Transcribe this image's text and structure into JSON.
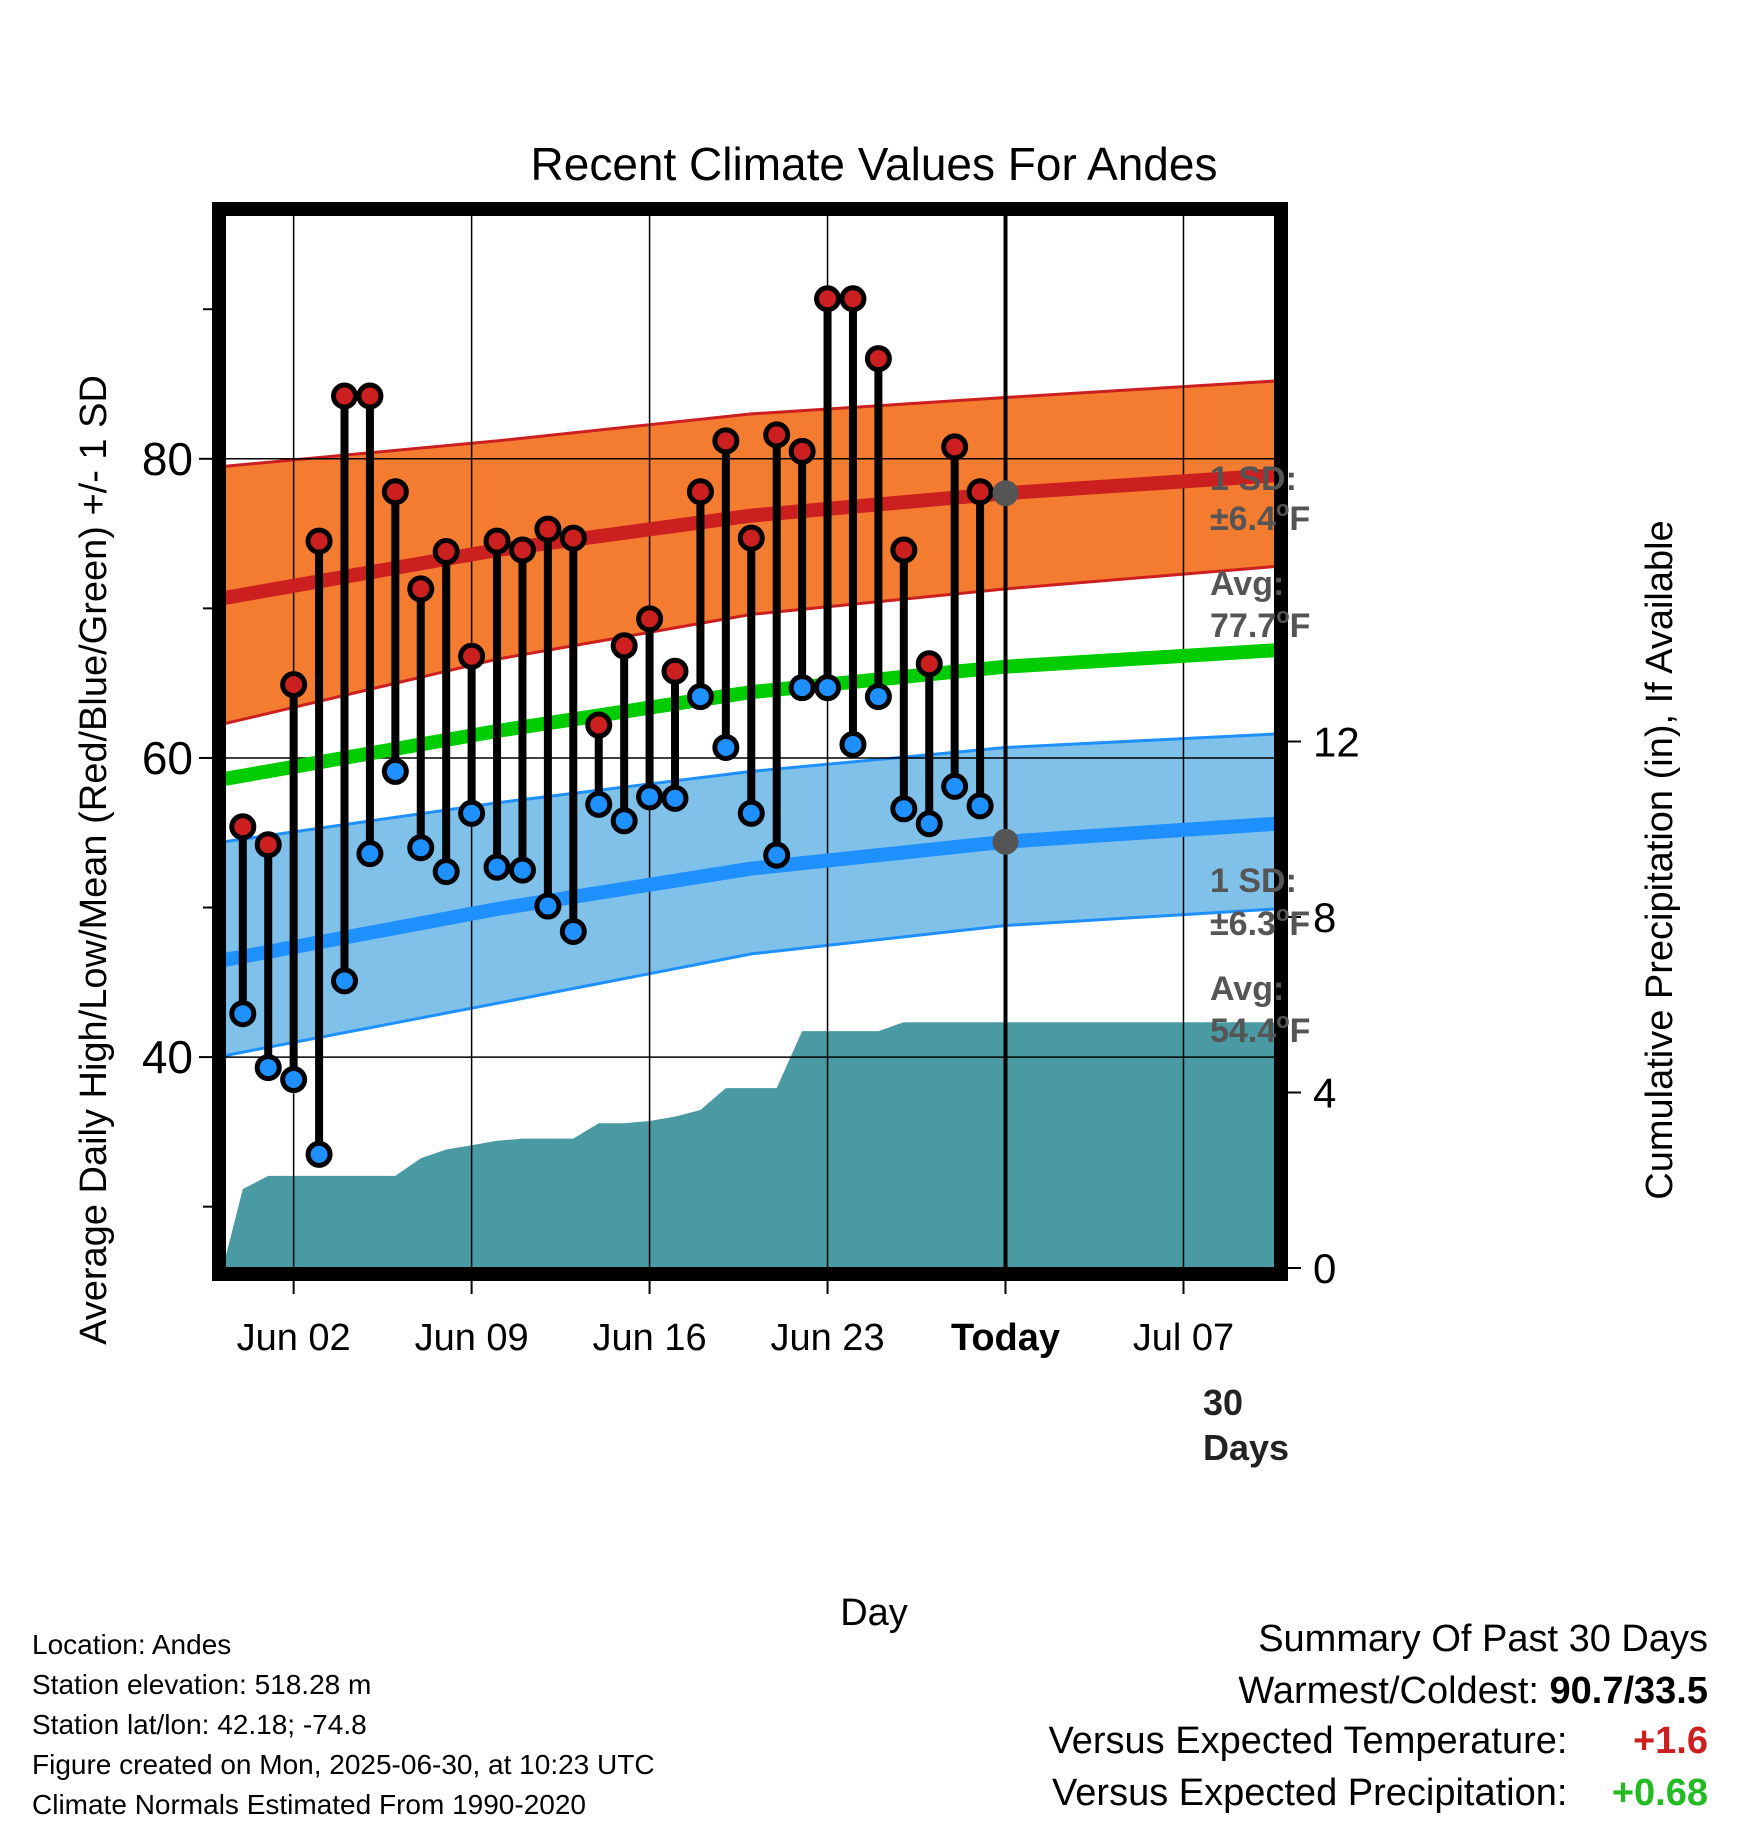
{
  "chart_data": {
    "type": "line",
    "title": "Recent Climate Values For Andes",
    "xlabel": "Day",
    "ylabel": "Average Daily High/Low/Mean (Red/Blue/Green) +/- 1 SD",
    "y2label": "Cumulative Precipitation (in), If Available",
    "xlim": [
      -2.7,
      38.6
    ],
    "ylim": [
      25.9,
      96.3
    ],
    "y2lim": [
      0,
      24
    ],
    "x_ticks": [
      {
        "x": 0,
        "label": "Jun 02"
      },
      {
        "x": 7,
        "label": "Jun 09"
      },
      {
        "x": 14,
        "label": "Jun 16"
      },
      {
        "x": 21,
        "label": "Jun 23"
      },
      {
        "x": 28,
        "label": "Today"
      },
      {
        "x": 35,
        "label": "Jul 07"
      }
    ],
    "y_ticks": [
      40,
      60,
      80
    ],
    "y_minor_ticks": [
      30,
      50,
      70,
      90
    ],
    "y2_ticks": [
      0,
      4,
      8,
      12
    ],
    "grid": true,
    "today_x": 28,
    "today_label": "30 Days",
    "days": [
      -2,
      -1,
      0,
      1,
      2,
      3,
      4,
      5,
      6,
      7,
      8,
      9,
      10,
      11,
      12,
      13,
      14,
      15,
      16,
      17,
      18,
      19,
      20,
      21,
      22,
      23,
      24,
      25,
      26,
      27
    ],
    "highs": [
      55.4,
      54.2,
      64.9,
      74.5,
      84.2,
      84.2,
      77.8,
      71.3,
      73.8,
      66.8,
      74.5,
      73.9,
      75.3,
      74.7,
      62.2,
      67.5,
      69.3,
      65.8,
      77.8,
      81.2,
      74.7,
      81.6,
      80.5,
      90.7,
      90.7,
      86.7,
      73.9,
      66.3,
      80.8,
      77.8
    ],
    "lows": [
      42.9,
      39.3,
      38.5,
      33.5,
      45.1,
      53.6,
      59.1,
      54.0,
      52.4,
      56.3,
      52.7,
      52.5,
      50.1,
      48.4,
      56.9,
      55.8,
      57.4,
      57.3,
      64.1,
      60.7,
      56.3,
      53.5,
      64.7,
      64.7,
      60.9,
      64.1,
      56.6,
      55.6,
      58.1,
      56.8
    ],
    "series": [
      {
        "name": "Avg High",
        "color": "#cc1f1f",
        "x": [
          -2.7,
          8,
          18,
          28,
          38.6
        ],
        "values": [
          70.7,
          73.9,
          76.2,
          77.7,
          78.9
        ]
      },
      {
        "name": "Avg Mean",
        "color": "#00cc00",
        "x": [
          -2.7,
          8,
          18,
          28,
          38.6
        ],
        "values": [
          58.6,
          61.8,
          64.4,
          66.1,
          67.2
        ]
      },
      {
        "name": "Avg Low",
        "color": "#1e90ff",
        "x": [
          -2.7,
          8,
          18,
          28,
          38.6
        ],
        "values": [
          46.5,
          49.9,
          52.6,
          54.4,
          55.6
        ]
      }
    ],
    "bands": [
      {
        "name": "High +/- 1 SD",
        "color": "#f47c30",
        "edge": "#cc1f1f",
        "x": [
          -2.7,
          8,
          18,
          28,
          38.6
        ],
        "upper": [
          79.5,
          81.2,
          83.0,
          84.1,
          85.2
        ],
        "lower": [
          62.3,
          66.6,
          69.6,
          71.3,
          72.8
        ]
      },
      {
        "name": "Low +/- 1 SD",
        "color": "#80c1ea",
        "edge": "#1e90ff",
        "x": [
          -2.7,
          8,
          18,
          28,
          38.6
        ],
        "upper": [
          54.4,
          57.0,
          59.1,
          60.7,
          61.6
        ],
        "lower": [
          40.1,
          43.6,
          46.9,
          48.8,
          49.9
        ]
      }
    ],
    "precipitation": {
      "color": "#4a9aa3",
      "x": [
        -2.7,
        -2.0,
        -1.0,
        0,
        1,
        2,
        3,
        4,
        5,
        6,
        7,
        8,
        9,
        10,
        11,
        12,
        13,
        14,
        15,
        16,
        17,
        18,
        19,
        20,
        21,
        22,
        23,
        24,
        25,
        26,
        27,
        28,
        38.6
      ],
      "values": [
        0.2,
        1.8,
        2.1,
        2.1,
        2.1,
        2.1,
        2.1,
        2.1,
        2.5,
        2.7,
        2.8,
        2.9,
        2.95,
        2.95,
        2.95,
        3.3,
        3.3,
        3.35,
        3.45,
        3.6,
        4.1,
        4.1,
        4.1,
        5.4,
        5.4,
        5.4,
        5.4,
        5.6,
        5.6,
        5.6,
        5.6,
        5.6,
        5.6
      ]
    },
    "annotations": {
      "high_sd": "1 SD: ±6.4°F",
      "high_avg": "Avg: 77.7°F",
      "high_avg_value": 77.7,
      "low_sd": "1 SD: ±6.3°F",
      "low_avg": "Avg: 54.4°F",
      "low_avg_value": 54.4
    }
  },
  "chart_text": {
    "sd_label": "1 SD:",
    "high_sd_value": "±6.4",
    "low_sd_value": "±6.3",
    "avg_label": "Avg:",
    "high_avg_value": "77.7",
    "low_avg_value": "54.4",
    "deg_unit": "o",
    "f_unit": "F",
    "today_days_line1": "30",
    "today_days_line2": "Days"
  },
  "info": {
    "location": "Location: Andes",
    "elevation": "Station elevation: 518.28 m",
    "latlon": "Station lat/lon: 42.18; -74.8",
    "created": "Figure created on Mon, 2025-06-30, at 10:23 UTC",
    "normals": "Climate Normals Estimated From 1990-2020"
  },
  "summary": {
    "title": "Summary Of Past 30 Days",
    "warm_cold_label": "Warmest/Coldest:",
    "warm_cold_value": "90.7/33.5",
    "temp_label": "Versus Expected Temperature:",
    "temp_value": "+1.6",
    "temp_color": "#cc1f1f",
    "precip_label": "Versus Expected Precipitation:",
    "precip_value": "+0.68",
    "precip_color": "#22bb22"
  }
}
